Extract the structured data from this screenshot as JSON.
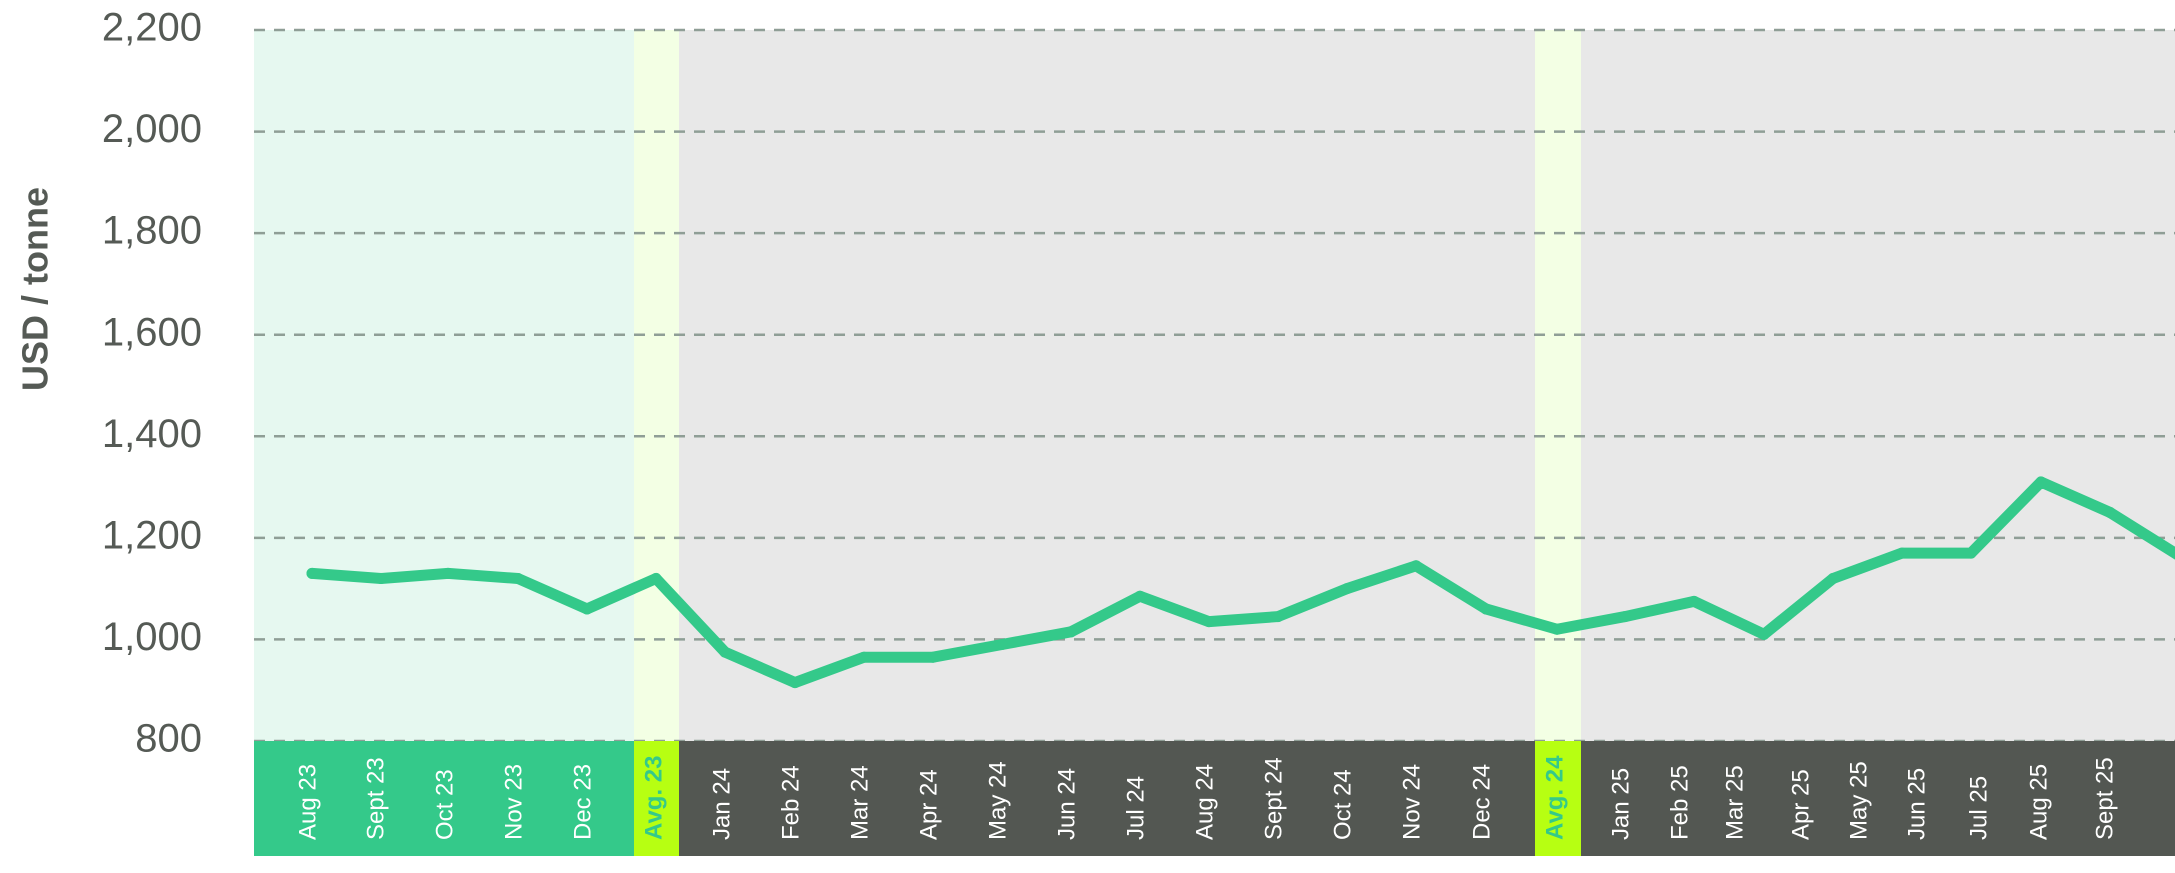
{
  "chart_data": {
    "type": "line",
    "ylabel": "USD / tonne",
    "ylim": [
      800,
      2200
    ],
    "yticks": [
      "2,200",
      "2,000",
      "1,800",
      "1,600",
      "1,400",
      "1,200",
      "1,000",
      "800"
    ],
    "ytick_values": [
      2200,
      2000,
      1800,
      1600,
      1400,
      1200,
      1000,
      800
    ],
    "grid": true,
    "legend": "none",
    "colors": {
      "line": "#34c98a",
      "band_2023": "#e6f8f0",
      "band_avg": "#f3ffe4",
      "band_later": "#e8e8e8",
      "axis_2023": "#34c98a",
      "axis_later": "#535752",
      "axis_avg": "#b7ff12",
      "grid": "#8f9e96",
      "tick_text": "#555a55",
      "axis_text": "#ffffff",
      "avg_text": "#34c98a"
    },
    "categories": [
      "Aug 23",
      "Sept 23",
      "Oct 23",
      "Nov 23",
      "Dec 23",
      "Avg. 23",
      "Jan 24",
      "Feb 24",
      "Mar 24",
      "Apr 24",
      "May 24",
      "Jun 24",
      "Jul 24",
      "Aug 24",
      "Sept 24",
      "Oct 24",
      "Nov 24",
      "Dec 24",
      "Avg. 24",
      "Jan 25",
      "Feb 25",
      "Mar 25",
      "Apr 25",
      "May 25",
      "Jun 25",
      "Jul 25",
      "Aug 25",
      "Sept 25"
    ],
    "series": [
      {
        "values": [
          1130,
          1120,
          1130,
          1120,
          1060,
          1120,
          975,
          915,
          965,
          965,
          990,
          1015,
          1085,
          1035,
          1045,
          1100,
          1145,
          1060,
          1020,
          1045,
          1075,
          1010,
          1120,
          1170,
          1170,
          1310,
          1250,
          1165
        ]
      }
    ]
  }
}
